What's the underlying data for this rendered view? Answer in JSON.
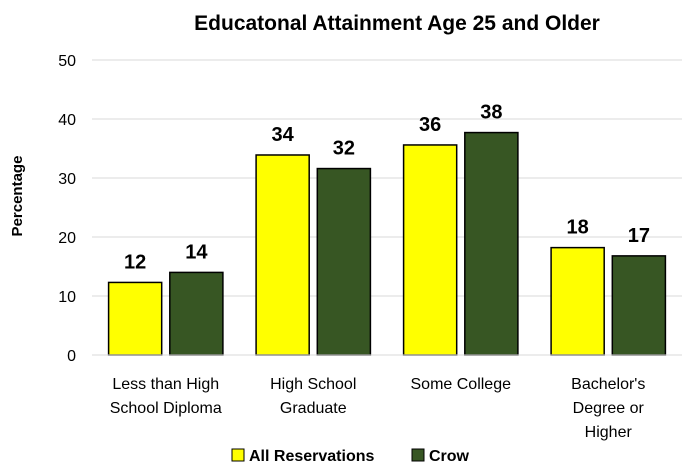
{
  "chart_data": {
    "type": "bar",
    "title": "Educatonal Attainment Age 25 and Older",
    "ylabel": "Percentage",
    "xlabel": "",
    "ylim": [
      0,
      50
    ],
    "yticks": [
      0,
      10,
      20,
      30,
      40,
      50
    ],
    "grid": true,
    "legend_position": "bottom",
    "categories": [
      [
        "Less than High",
        "School Diploma"
      ],
      [
        "High School",
        "Graduate"
      ],
      [
        "Some College"
      ],
      [
        "Bachelor's",
        "Degree or",
        "Higher"
      ]
    ],
    "series": [
      {
        "name": "All Reservations",
        "color": "#ffff00",
        "values": [
          12.3,
          33.9,
          35.6,
          18.2
        ],
        "labels": [
          "12",
          "34",
          "36",
          "18"
        ]
      },
      {
        "name": "Crow",
        "color": "#375623",
        "values": [
          14.0,
          31.6,
          37.7,
          16.8
        ],
        "labels": [
          "14",
          "32",
          "38",
          "17"
        ]
      }
    ]
  }
}
